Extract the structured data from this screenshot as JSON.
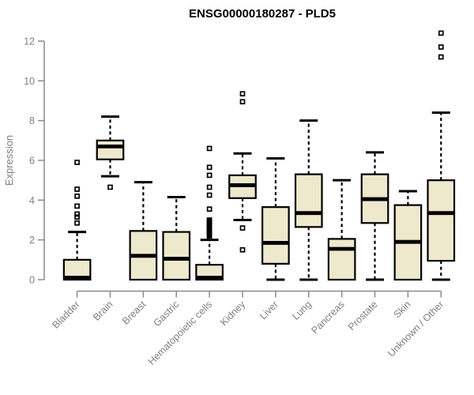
{
  "colors": {
    "box_fill": "#EEE8CD",
    "box_stroke": "#000000",
    "median": "#000000",
    "whisker": "#000000",
    "outlier": "#000000",
    "axis": "#8a8a8a",
    "tick_text": "#7f7f7f",
    "title_text": "#000000",
    "background": "#ffffff"
  },
  "chart_data": {
    "type": "boxplot",
    "title": "ENSG00000180287 - PLD5",
    "xlabel": "",
    "ylabel": "Expression",
    "ylim": [
      0,
      12
    ],
    "yticks": [
      0,
      2,
      4,
      6,
      8,
      10,
      12
    ],
    "grid": false,
    "legend": "none",
    "categories": [
      "Bladder",
      "Brain",
      "Breast",
      "Gastric",
      "Hematopoietic cells",
      "Kidney",
      "Liver",
      "Lung",
      "Pancreas",
      "Prostate",
      "Skin",
      "Unknown / Other"
    ],
    "boxes": [
      {
        "category": "Bladder",
        "whisker_low": 0,
        "q1": 0,
        "median": 0.1,
        "q3": 1.0,
        "whisker_high": 2.4,
        "outliers": [
          2.85,
          3.15,
          3.3,
          3.7,
          4.2,
          4.55,
          5.9
        ]
      },
      {
        "category": "Brain",
        "whisker_low": 5.2,
        "q1": 6.05,
        "median": 6.7,
        "q3": 7.0,
        "whisker_high": 8.2,
        "outliers": [
          4.65
        ]
      },
      {
        "category": "Breast",
        "whisker_low": 0,
        "q1": 0,
        "median": 1.2,
        "q3": 2.45,
        "whisker_high": 4.9,
        "outliers": []
      },
      {
        "category": "Gastric",
        "whisker_low": 0,
        "q1": 0,
        "median": 1.05,
        "q3": 2.4,
        "whisker_high": 4.15,
        "outliers": []
      },
      {
        "category": "Hematopoietic cells",
        "whisker_low": 0,
        "q1": 0,
        "median": 0.1,
        "q3": 0.75,
        "whisker_high": 2.0,
        "outliers": [
          2.2,
          2.25,
          2.3,
          2.35,
          2.4,
          2.45,
          2.5,
          2.55,
          2.6,
          2.65,
          2.7,
          2.75,
          2.8,
          2.85,
          2.9,
          2.95,
          3.0,
          3.55,
          4.25,
          4.65,
          5.25,
          5.65,
          6.6
        ]
      },
      {
        "category": "Kidney",
        "whisker_low": 3.0,
        "q1": 4.1,
        "median": 4.75,
        "q3": 5.25,
        "whisker_high": 6.35,
        "outliers": [
          1.5,
          2.6,
          8.95,
          9.35
        ]
      },
      {
        "category": "Liver",
        "whisker_low": 0,
        "q1": 0.8,
        "median": 1.85,
        "q3": 3.65,
        "whisker_high": 6.1,
        "outliers": []
      },
      {
        "category": "Lung",
        "whisker_low": 0,
        "q1": 2.65,
        "median": 3.35,
        "q3": 5.3,
        "whisker_high": 8.0,
        "outliers": []
      },
      {
        "category": "Pancreas",
        "whisker_low": 0,
        "q1": 0,
        "median": 1.55,
        "q3": 2.05,
        "whisker_high": 5.0,
        "outliers": []
      },
      {
        "category": "Prostate",
        "whisker_low": 0,
        "q1": 2.85,
        "median": 4.05,
        "q3": 5.3,
        "whisker_high": 6.4,
        "outliers": []
      },
      {
        "category": "Skin",
        "whisker_low": 0,
        "q1": 0,
        "median": 1.9,
        "q3": 3.75,
        "whisker_high": 4.45,
        "outliers": []
      },
      {
        "category": "Unknown / Other",
        "whisker_low": 0,
        "q1": 0.95,
        "median": 3.35,
        "q3": 5.0,
        "whisker_high": 8.4,
        "outliers": [
          11.2,
          11.7,
          12.4
        ]
      }
    ]
  }
}
